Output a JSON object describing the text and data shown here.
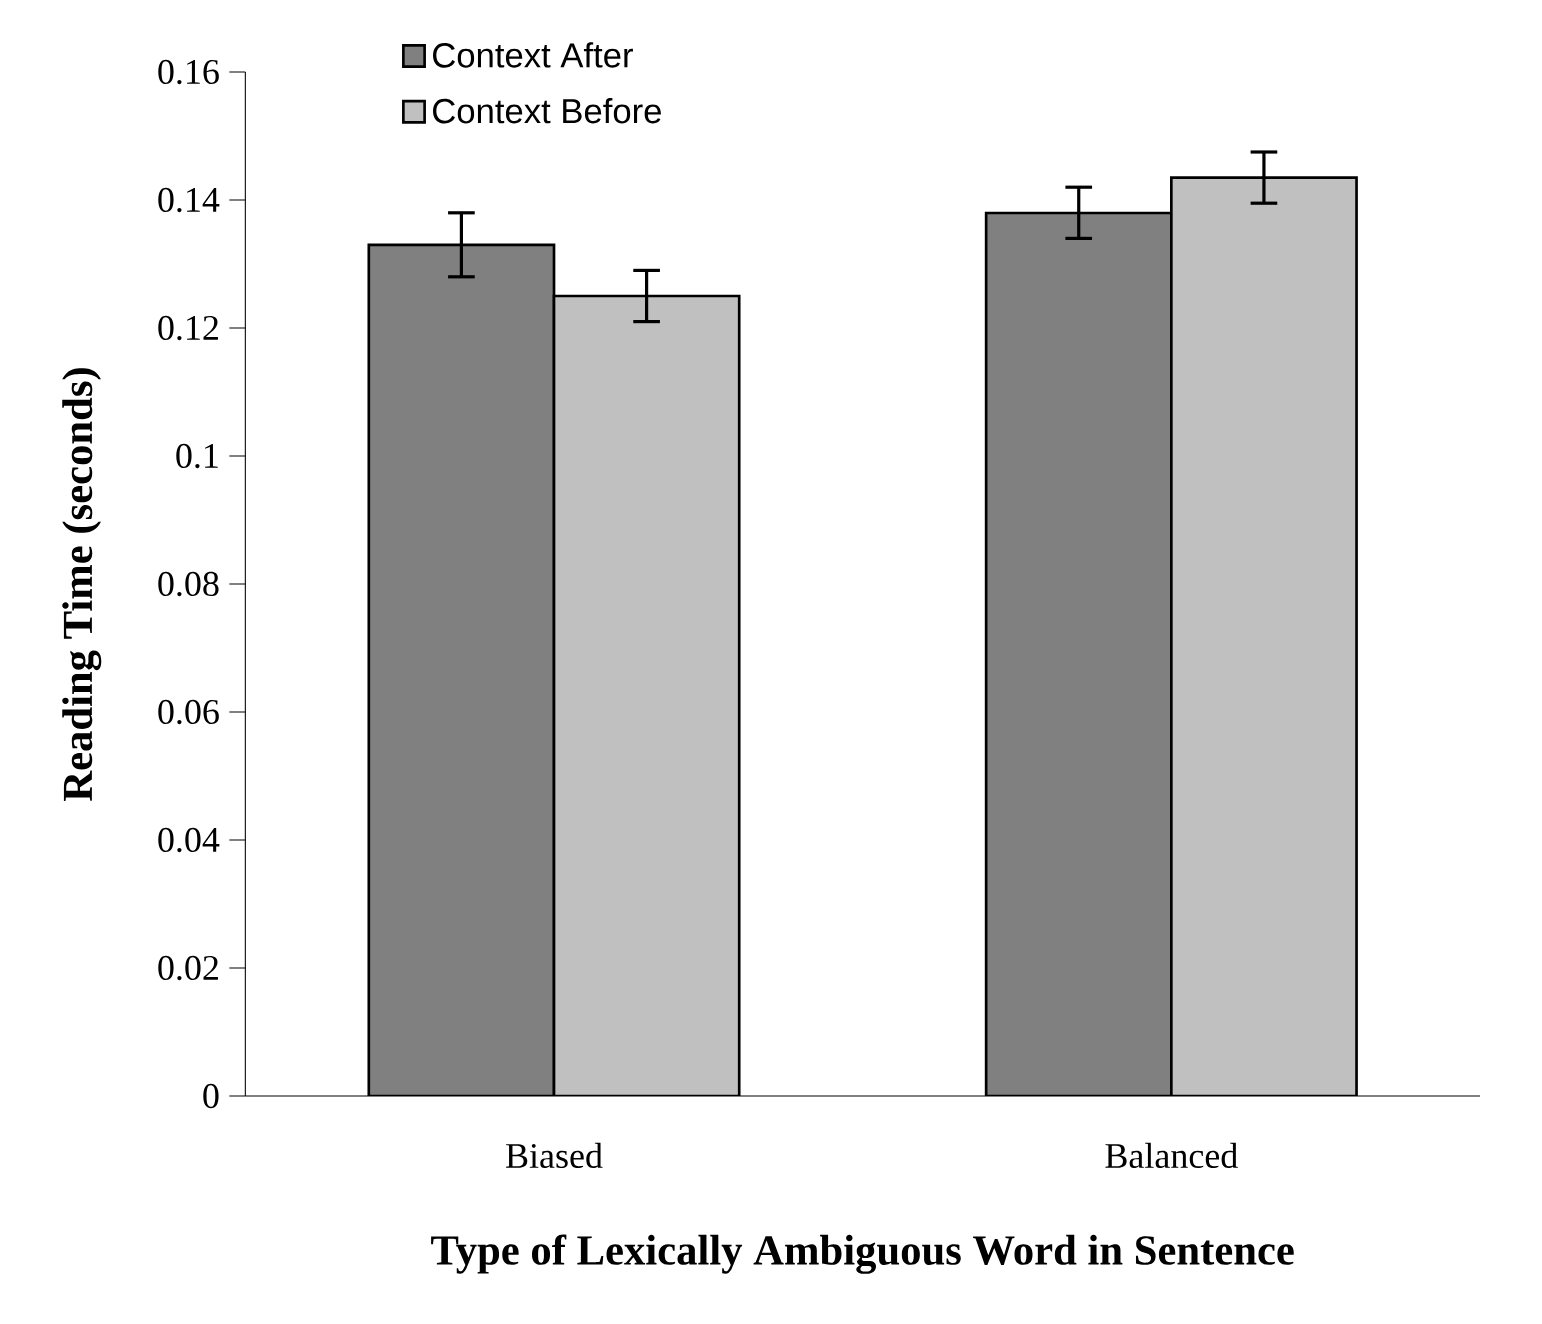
{
  "chart_data": {
    "type": "bar",
    "xlabel": "Type of Lexically Ambiguous Word in Sentence",
    "ylabel": "Reading Time (seconds)",
    "categories": [
      "Biased",
      "Balanced"
    ],
    "series": [
      {
        "name": "Context After",
        "color": "#808080",
        "values": [
          0.133,
          0.138
        ],
        "errors": [
          0.005,
          0.004
        ]
      },
      {
        "name": "Context Before",
        "color": "#c0c0c0",
        "values": [
          0.125,
          0.1435
        ],
        "errors": [
          0.004,
          0.004
        ]
      }
    ],
    "ylim": [
      0,
      0.16
    ],
    "yticks": [
      0,
      0.02,
      0.04,
      0.06,
      0.08,
      0.1,
      0.12,
      0.14,
      0.16
    ],
    "grid": false,
    "legend": "top left"
  }
}
